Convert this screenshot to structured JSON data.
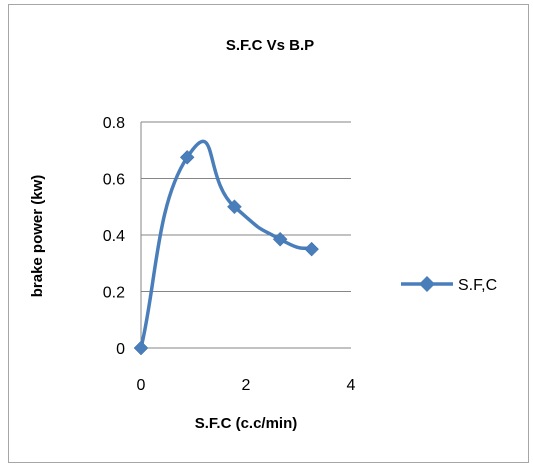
{
  "chart_data": {
    "type": "line",
    "title": "S.F.C Vs B.P",
    "xlabel": "S.F.C (c.c/min)",
    "ylabel": "brake power (kw)",
    "xlim": [
      0,
      4
    ],
    "ylim": [
      0,
      0.8
    ],
    "x_ticks": [
      "0",
      "2",
      "4"
    ],
    "y_ticks": [
      "0",
      "0.2",
      "0.4",
      "0.6",
      "0.8"
    ],
    "grid": "horizontal",
    "legend_position": "right",
    "smoothed": true,
    "series": [
      {
        "name": "S.F,C",
        "color": "#4a7ebb",
        "marker": "diamond",
        "x": [
          0,
          0.88,
          1.78,
          2.65,
          3.25
        ],
        "y": [
          0,
          0.675,
          0.5,
          0.385,
          0.35
        ]
      }
    ]
  }
}
